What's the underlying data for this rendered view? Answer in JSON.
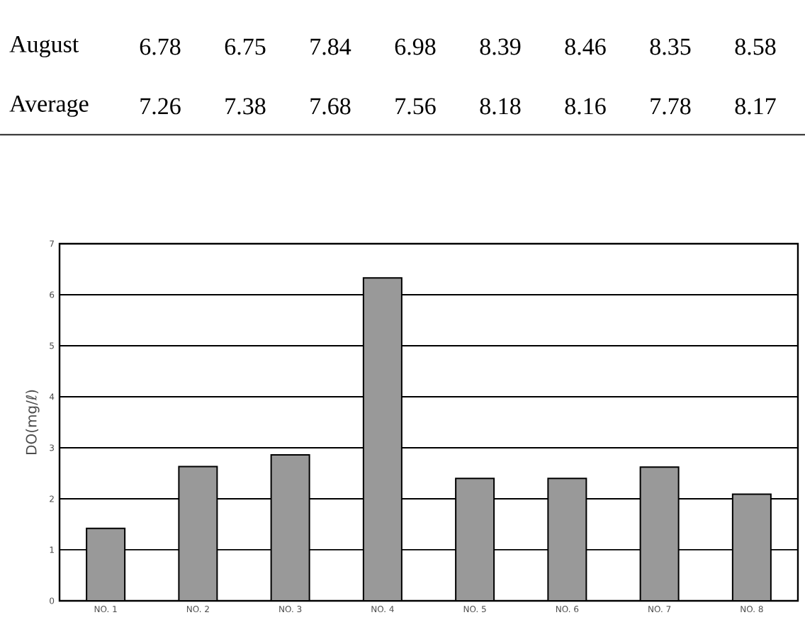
{
  "chart_data": {
    "type": "bar",
    "ylabel": "DO(mg/ℓ)",
    "categories": [
      "NO. 1",
      "NO. 2",
      "NO. 3",
      "NO. 4",
      "NO. 5",
      "NO. 6",
      "NO. 7",
      "NO. 8"
    ],
    "values": [
      1.42,
      2.63,
      2.86,
      6.33,
      2.4,
      2.4,
      2.62,
      2.09
    ],
    "color": "#999999",
    "ylim": [
      0,
      7
    ],
    "yticks": [
      0,
      1,
      2,
      3,
      4,
      5,
      6,
      7
    ],
    "grid": "y",
    "annotations": [
      "August",
      "6.78",
      "6.75",
      "7.84",
      "6.98",
      "8.39",
      "8.46",
      "8.35",
      "8.58",
      "Average",
      "7.26",
      "7.38",
      "7.68",
      "7.56",
      "8.18",
      "8.16",
      "7.78",
      "8.17"
    ]
  }
}
